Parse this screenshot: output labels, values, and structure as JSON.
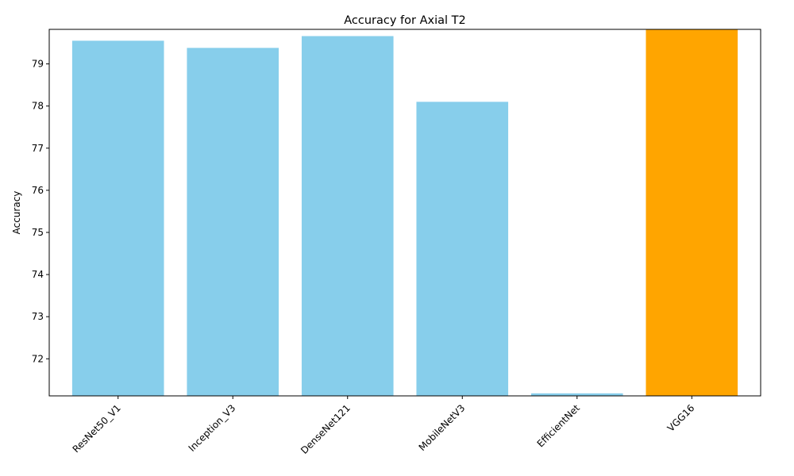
{
  "chart_data": {
    "type": "bar",
    "title": "Accuracy for Axial T2",
    "xlabel": "",
    "ylabel": "Accuracy",
    "categories": [
      "ResNet50_V1",
      "Inception_V3",
      "DenseNet121",
      "MobileNetV3",
      "EfficientNet",
      "VGG16"
    ],
    "values": [
      79.55,
      79.38,
      79.66,
      78.1,
      71.18,
      79.82
    ],
    "ylim": [
      71.12,
      79.82
    ],
    "yticks": [
      72,
      73,
      74,
      75,
      76,
      77,
      78,
      79
    ],
    "bar_colors": [
      "#87ceeb",
      "#87ceeb",
      "#87ceeb",
      "#87ceeb",
      "#87ceeb",
      "#ffa500"
    ],
    "highlight_color": "#ffa500",
    "base_color": "#87ceeb",
    "grid": false,
    "legend": "none"
  }
}
